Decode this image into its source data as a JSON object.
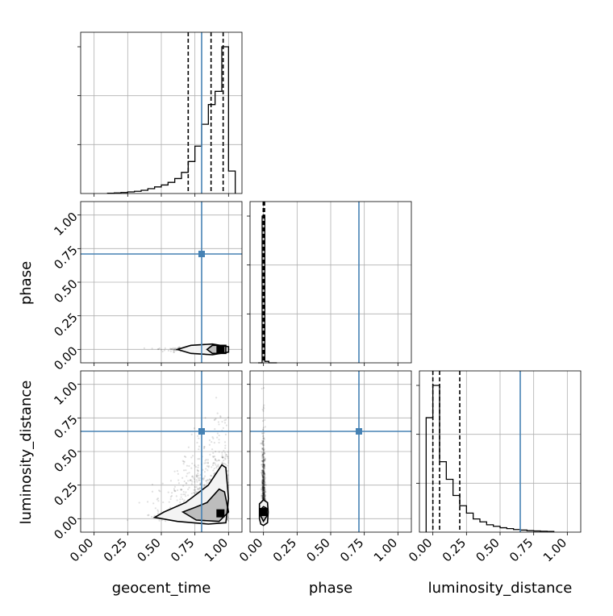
{
  "chart_data": {
    "type": "corner",
    "parameters": [
      "geocent_time",
      "phase",
      "luminosity_distance"
    ],
    "axis_range": [
      -0.1,
      1.1
    ],
    "tick_values": [
      0.0,
      0.25,
      0.5,
      0.75,
      1.0
    ],
    "tick_labels": [
      "0.00",
      "0.25",
      "0.50",
      "0.75",
      "1.00"
    ],
    "truth_values": {
      "geocent_time": 0.8,
      "phase": 0.71,
      "luminosity_distance": 0.65
    },
    "colors": {
      "truth": "#4682b4",
      "hist": "#000000",
      "grid": "#b0b0b0"
    },
    "grid": true,
    "diagonal": [
      {
        "parameter": "geocent_time",
        "bin_edges": [
          0.1,
          0.15,
          0.2,
          0.25,
          0.3,
          0.35,
          0.4,
          0.45,
          0.5,
          0.55,
          0.6,
          0.65,
          0.7,
          0.75,
          0.8,
          0.85,
          0.9,
          0.95,
          1.0,
          1.05
        ],
        "counts": [
          0.2,
          0.4,
          0.7,
          1.1,
          1.5,
          2.2,
          3.3,
          4.5,
          5.8,
          7.6,
          10.2,
          14.4,
          21.8,
          32.3,
          47.2,
          60.6,
          69.6,
          100.0,
          15.3
        ],
        "quantiles": [
          0.7,
          0.87,
          0.96
        ]
      },
      {
        "parameter": "phase",
        "bin_edges": [
          -0.04,
          -0.01,
          0.01,
          0.04,
          0.1
        ],
        "counts": [
          0,
          100,
          1,
          0
        ],
        "quantiles": [
          -0.002,
          0.003,
          0.008
        ]
      },
      {
        "parameter": "luminosity_distance",
        "bin_edges": [
          -0.05,
          0.0,
          0.05,
          0.1,
          0.15,
          0.2,
          0.25,
          0.3,
          0.35,
          0.4,
          0.45,
          0.5,
          0.55,
          0.6,
          0.65,
          0.7,
          0.75,
          0.8,
          0.85,
          0.9
        ],
        "counts": [
          78,
          100,
          48,
          36,
          25,
          18,
          13,
          9,
          7,
          5,
          4,
          3,
          2.4,
          1.8,
          1.4,
          1.0,
          0.8,
          0.6,
          0.5
        ],
        "quantiles": [
          0.0,
          0.05,
          0.2
        ]
      }
    ],
    "pairs": [
      {
        "x": "geocent_time",
        "y": "phase",
        "samples_x_range": [
          0.1,
          1.0
        ],
        "samples_y_center": 0.0,
        "contours": [
          [
            [
              0.62,
              0.0
            ],
            [
              0.72,
              -0.03
            ],
            [
              0.88,
              -0.04
            ],
            [
              1.0,
              -0.02
            ],
            [
              1.0,
              0.02
            ],
            [
              0.88,
              0.04
            ],
            [
              0.72,
              0.03
            ]
          ],
          [
            [
              0.84,
              0.0
            ],
            [
              0.88,
              -0.03
            ],
            [
              0.98,
              -0.03
            ],
            [
              0.98,
              0.03
            ],
            [
              0.88,
              0.03
            ]
          ]
        ],
        "peak": [
          0.94,
          0.0
        ]
      },
      {
        "x": "geocent_time",
        "y": "luminosity_distance",
        "samples_x_range": [
          0.1,
          1.0
        ],
        "samples_y_range": [
          -0.05,
          0.9
        ],
        "contours": [
          [
            [
              0.45,
              0.01
            ],
            [
              0.62,
              -0.02
            ],
            [
              0.85,
              -0.04
            ],
            [
              0.98,
              -0.03
            ],
            [
              1.0,
              0.15
            ],
            [
              0.98,
              0.38
            ],
            [
              0.95,
              0.4
            ],
            [
              0.85,
              0.25
            ],
            [
              0.68,
              0.12
            ],
            [
              0.52,
              0.05
            ]
          ],
          [
            [
              0.66,
              0.05
            ],
            [
              0.76,
              -0.01
            ],
            [
              0.93,
              -0.02
            ],
            [
              1.0,
              0.05
            ],
            [
              0.97,
              0.2
            ],
            [
              0.93,
              0.22
            ],
            [
              0.84,
              0.12
            ],
            [
              0.74,
              0.08
            ]
          ]
        ],
        "peak": [
          0.94,
          0.04
        ]
      },
      {
        "x": "phase",
        "y": "luminosity_distance",
        "samples_x_center": 0.0,
        "samples_y_range": [
          -0.05,
          0.9
        ],
        "contours": [
          [
            [
              -0.03,
              0.0
            ],
            [
              -0.02,
              -0.04
            ],
            [
              0.0,
              -0.05
            ],
            [
              0.03,
              -0.03
            ],
            [
              0.035,
              0.05
            ],
            [
              0.03,
              0.12
            ],
            [
              0.0,
              0.14
            ],
            [
              -0.03,
              0.11
            ]
          ],
          [
            [
              -0.02,
              0.02
            ],
            [
              0.0,
              -0.02
            ],
            [
              0.025,
              0.02
            ],
            [
              0.02,
              0.08
            ],
            [
              0.0,
              0.09
            ],
            [
              -0.02,
              0.07
            ]
          ]
        ],
        "peak": [
          0.0,
          0.05
        ]
      }
    ]
  }
}
